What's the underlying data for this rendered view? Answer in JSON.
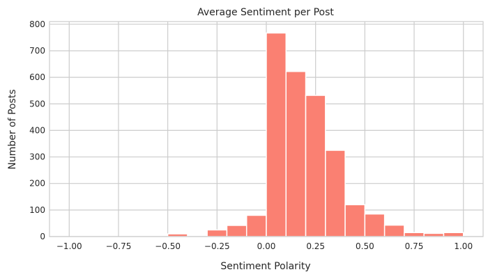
{
  "chart_data": {
    "type": "bar",
    "title": "Average Sentiment per Post",
    "xlabel": "Sentiment Polarity",
    "ylabel": "Number of Posts",
    "xlim": [
      -1.1,
      1.1
    ],
    "ylim": [
      0,
      810
    ],
    "xticks": [
      -1.0,
      -0.75,
      -0.5,
      -0.25,
      0.0,
      0.25,
      0.5,
      0.75,
      1.0
    ],
    "xtick_labels": [
      "−1.00",
      "−0.75",
      "−0.50",
      "−0.25",
      "0.00",
      "0.25",
      "0.50",
      "0.75",
      "1.00"
    ],
    "yticks": [
      0,
      100,
      200,
      300,
      400,
      500,
      600,
      700,
      800
    ],
    "ytick_labels": [
      "0",
      "100",
      "200",
      "300",
      "400",
      "500",
      "600",
      "700",
      "800"
    ],
    "grid": true,
    "bar_color": "#fa8072",
    "bins": [
      {
        "x0": -0.5,
        "x1": -0.4,
        "value": 10
      },
      {
        "x0": -0.3,
        "x1": -0.2,
        "value": 25
      },
      {
        "x0": -0.2,
        "x1": -0.1,
        "value": 42
      },
      {
        "x0": -0.1,
        "x1": 0.0,
        "value": 80
      },
      {
        "x0": 0.0,
        "x1": 0.1,
        "value": 767
      },
      {
        "x0": 0.1,
        "x1": 0.2,
        "value": 622
      },
      {
        "x0": 0.2,
        "x1": 0.3,
        "value": 532
      },
      {
        "x0": 0.3,
        "x1": 0.4,
        "value": 325
      },
      {
        "x0": 0.4,
        "x1": 0.5,
        "value": 120
      },
      {
        "x0": 0.5,
        "x1": 0.6,
        "value": 85
      },
      {
        "x0": 0.6,
        "x1": 0.7,
        "value": 43
      },
      {
        "x0": 0.7,
        "x1": 0.8,
        "value": 15
      },
      {
        "x0": 0.8,
        "x1": 0.9,
        "value": 12
      },
      {
        "x0": 0.9,
        "x1": 1.0,
        "value": 15
      }
    ]
  }
}
